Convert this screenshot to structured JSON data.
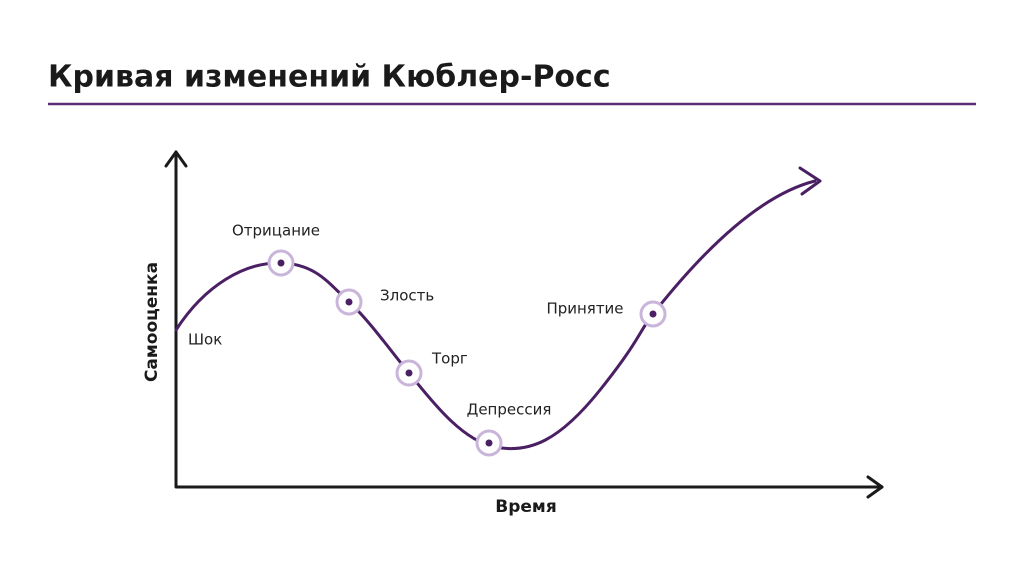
{
  "header": {
    "title": "Кривая изменений Кюблер-Росс"
  },
  "axes": {
    "y_label": "Самооценка",
    "x_label": "Время"
  },
  "stages": [
    {
      "label": "Шок"
    },
    {
      "label": "Отрицание"
    },
    {
      "label": "Злость"
    },
    {
      "label": "Торг"
    },
    {
      "label": "Депрессия"
    },
    {
      "label": "Принятие"
    }
  ]
}
